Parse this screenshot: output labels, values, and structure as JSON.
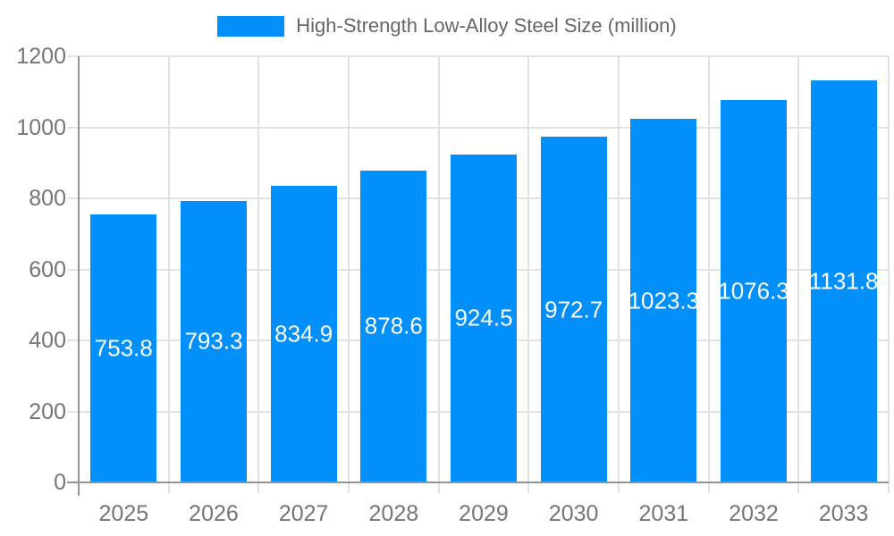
{
  "chart_data": {
    "type": "bar",
    "title": "High-Strength Low-Alloy Steel Size (million)",
    "legend_position": "top",
    "categories": [
      "2025",
      "2026",
      "2027",
      "2028",
      "2029",
      "2030",
      "2031",
      "2032",
      "2033"
    ],
    "series": [
      {
        "name": "High-Strength Low-Alloy Steel Size (million)",
        "values": [
          753.8,
          793.3,
          834.9,
          878.6,
          924.5,
          972.7,
          1023.3,
          1076.3,
          1131.8
        ]
      }
    ],
    "data_labels": [
      "753.8",
      "793.3",
      "834.9",
      "878.6",
      "924.5",
      "972.7",
      "1023.3",
      "1076.3",
      "1131.8"
    ],
    "xlabel": "",
    "ylabel": "",
    "ylim": [
      0,
      1200
    ],
    "y_ticks": [
      "0",
      "200",
      "400",
      "600",
      "800",
      "1000",
      "1200"
    ],
    "grid": "horizontal gridlines and vertical category separators",
    "colors": {
      "bar": "#008FFB",
      "bar_label": "#FFFFFF",
      "axis_text": "#757575",
      "legend_text": "#666666",
      "gridline": "#E2E2E2",
      "axis_line": "#949494",
      "background": "#FFFFFF"
    }
  }
}
